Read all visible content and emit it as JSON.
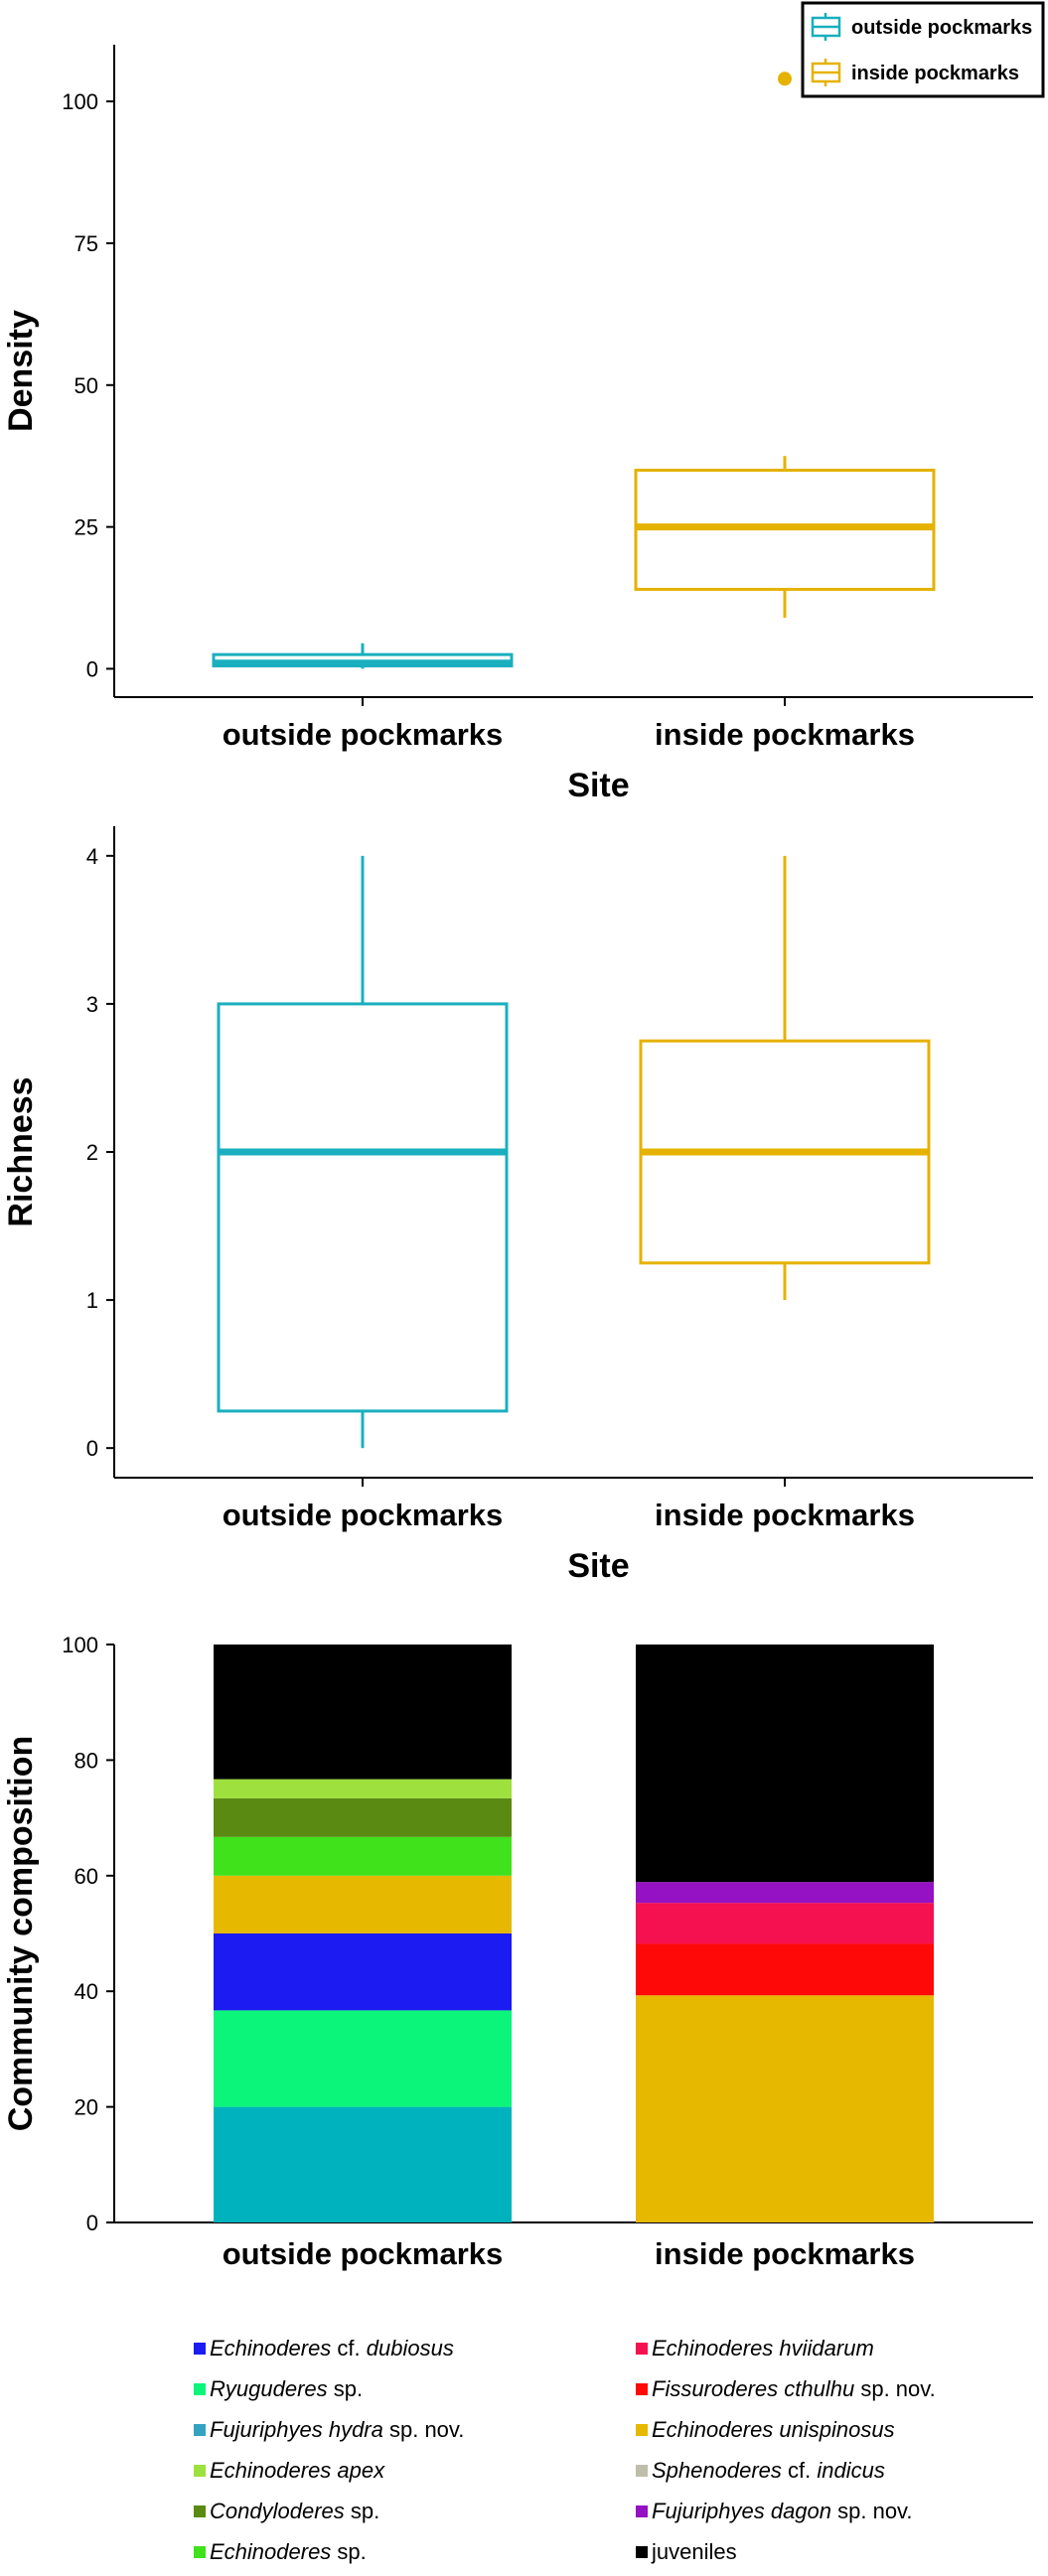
{
  "chart_data": [
    {
      "type": "box",
      "xlabel": "Site",
      "ylabel": "Density",
      "categories": [
        "outside pockmarks",
        "inside pockmarks"
      ],
      "yticks": [
        0,
        25,
        50,
        75,
        100
      ],
      "ylim": [
        -5,
        110
      ],
      "boxes": [
        {
          "name": "outside pockmarks",
          "whisker_low": 0,
          "q1": 0.5,
          "median": 1,
          "q3": 2.5,
          "whisker_high": 4.5,
          "color": "#1AAFBE"
        },
        {
          "name": "inside pockmarks",
          "whisker_low": 9,
          "q1": 14,
          "median": 25,
          "q3": 35,
          "whisker_high": 37.5,
          "color": "#E5B200"
        }
      ],
      "outliers": [
        {
          "category": "inside pockmarks",
          "value": 104
        }
      ],
      "legend": {
        "position": "top-right",
        "entries": [
          {
            "label": "outside pockmarks",
            "color": "#1AAFBE"
          },
          {
            "label": "inside pockmarks",
            "color": "#E5B200"
          }
        ]
      }
    },
    {
      "type": "box",
      "xlabel": "Site",
      "ylabel": "Richness",
      "categories": [
        "outside pockmarks",
        "inside pockmarks"
      ],
      "yticks": [
        0,
        1,
        2,
        3,
        4
      ],
      "ylim": [
        -0.2,
        4.2
      ],
      "boxes": [
        {
          "name": "outside pockmarks",
          "whisker_low": 0,
          "q1": 0.25,
          "median": 2,
          "q3": 3,
          "whisker_high": 4,
          "color": "#1AAFBE"
        },
        {
          "name": "inside pockmarks",
          "whisker_low": 1,
          "q1": 1.25,
          "median": 2,
          "q3": 2.75,
          "whisker_high": 4,
          "color": "#E5B200"
        }
      ]
    },
    {
      "type": "bar",
      "stacked": true,
      "ylabel": "Community composition",
      "xlabel": "",
      "categories": [
        "outside pockmarks",
        "inside pockmarks"
      ],
      "yticks": [
        0,
        20,
        40,
        60,
        80,
        100
      ],
      "ylim": [
        0,
        100
      ],
      "series": [
        {
          "name": "Fujuriphyes hydra sp. nov.",
          "color": "#00B2BE",
          "values": [
            20,
            0
          ]
        },
        {
          "name": "Ryuguderes sp.",
          "color": "#0BF57B",
          "values": [
            16.7,
            0
          ]
        },
        {
          "name": "Echinoderes cf. dubiosus",
          "color": "#1B1BF2",
          "values": [
            13.3,
            0
          ]
        },
        {
          "name": "Echinoderes unispinosus",
          "color": "#E6B800",
          "values": [
            10,
            39.3
          ]
        },
        {
          "name": "Echinoderes sp.",
          "color": "#3FE21B",
          "values": [
            6.7,
            0
          ]
        },
        {
          "name": "Condyloderes sp.",
          "color": "#5A8A12",
          "values": [
            6.7,
            0
          ]
        },
        {
          "name": "Echinoderes apex",
          "color": "#9EE03D",
          "values": [
            3.3,
            0
          ]
        },
        {
          "name": "Fissuroderes cthulhu sp. nov.",
          "color": "#FF0808",
          "values": [
            0,
            8.9
          ]
        },
        {
          "name": "Echinoderes hviidarum",
          "color": "#F5104F",
          "values": [
            0,
            7.1
          ]
        },
        {
          "name": "Fujuriphyes dagon sp. nov.",
          "color": "#9511C4",
          "values": [
            0,
            3.6
          ]
        },
        {
          "name": "Sphenoderes cf. indicus",
          "color": "#BEBEAA",
          "values": [
            0,
            0
          ]
        },
        {
          "name": "juveniles",
          "color": "#000000",
          "values": [
            23.3,
            41.1
          ]
        }
      ],
      "legend": {
        "position": "bottom",
        "columns": [
          [
            {
              "parts": [
                [
                  "Echinoderes",
                  true
                ],
                [
                  " cf. ",
                  false
                ],
                [
                  "dubiosus",
                  true
                ]
              ],
              "color": "#1B1BF2"
            },
            {
              "parts": [
                [
                  "Ryuguderes",
                  true
                ],
                [
                  " sp.",
                  false
                ]
              ],
              "color": "#0BF57B"
            },
            {
              "parts": [
                [
                  "Fujuriphyes hydra",
                  true
                ],
                [
                  " sp. nov.",
                  false
                ]
              ],
              "color": "#34A3C2"
            },
            {
              "parts": [
                [
                  "Echinoderes apex",
                  true
                ]
              ],
              "color": "#9EE03D"
            },
            {
              "parts": [
                [
                  "Condyloderes",
                  true
                ],
                [
                  " sp.",
                  false
                ]
              ],
              "color": "#5A8A12"
            },
            {
              "parts": [
                [
                  "Echinoderes",
                  true
                ],
                [
                  " sp.",
                  false
                ]
              ],
              "color": "#3FE21B"
            }
          ],
          [
            {
              "parts": [
                [
                  "Echinoderes hviidarum",
                  true
                ]
              ],
              "color": "#F5104F"
            },
            {
              "parts": [
                [
                  "Fissuroderes cthulhu",
                  true
                ],
                [
                  " sp. nov.",
                  false
                ]
              ],
              "color": "#FF0808"
            },
            {
              "parts": [
                [
                  "Echinoderes unispinosus",
                  true
                ]
              ],
              "color": "#E6B800"
            },
            {
              "parts": [
                [
                  "Sphenoderes",
                  true
                ],
                [
                  " cf. ",
                  false
                ],
                [
                  "indicus",
                  true
                ]
              ],
              "color": "#BEBEAA"
            },
            {
              "parts": [
                [
                  "Fujuriphyes dagon",
                  true
                ],
                [
                  " sp. nov.",
                  false
                ]
              ],
              "color": "#9511C4"
            },
            {
              "parts": [
                [
                  "juveniles",
                  false
                ]
              ],
              "color": "#000000"
            }
          ]
        ]
      }
    }
  ]
}
